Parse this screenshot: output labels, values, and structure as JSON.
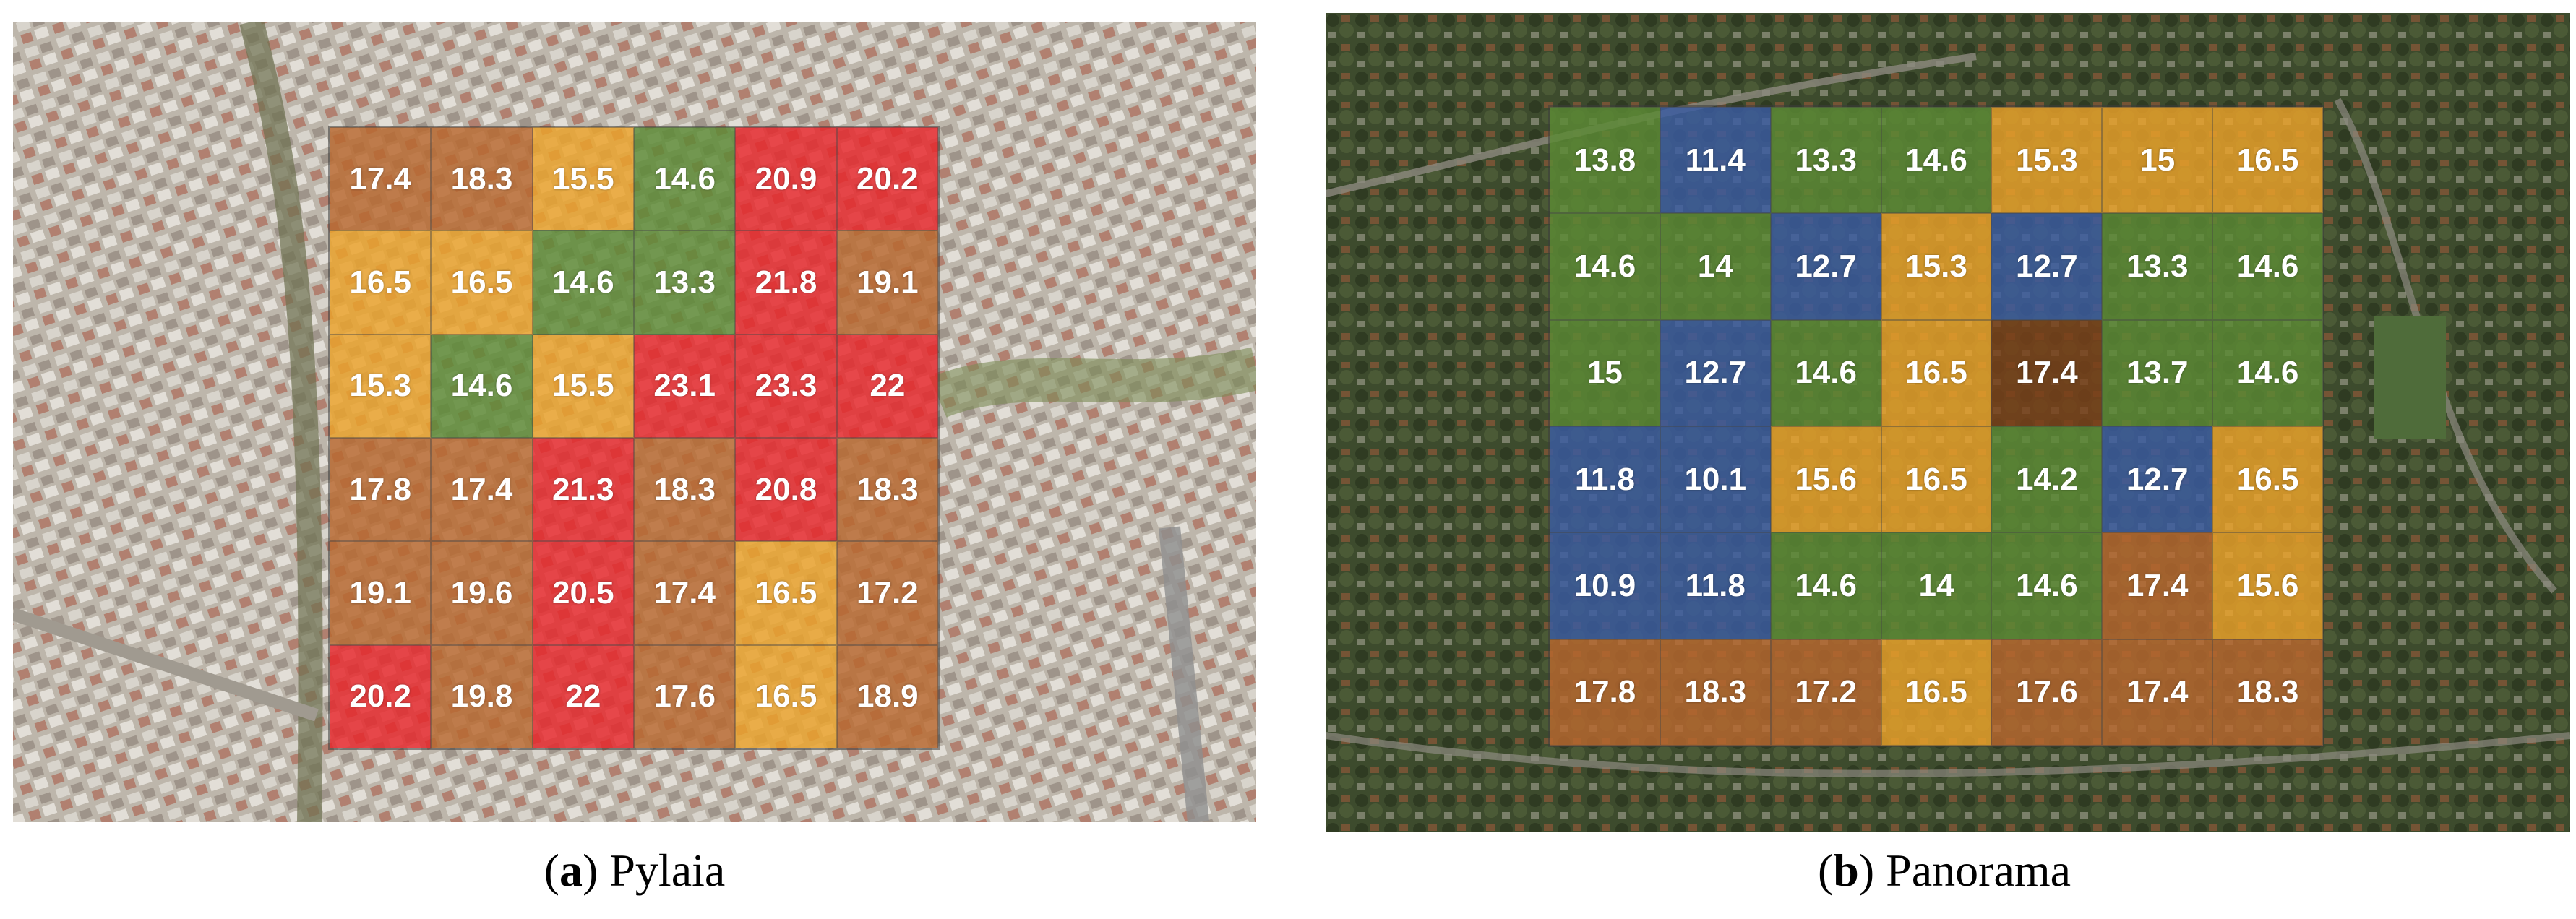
{
  "colors": {
    "red": "#e8262b",
    "brown": "#b8682e",
    "orange": "#eba22a",
    "green": "#5c8a34",
    "blue": "#3a5ca2",
    "darkbrown": "#7a3f19"
  },
  "panels": [
    {
      "id": "a",
      "caption_letter": "a",
      "caption_name": "Pylaia",
      "rows": [
        [
          {
            "v": "17.4",
            "c": "brown"
          },
          {
            "v": "18.3",
            "c": "brown"
          },
          {
            "v": "15.5",
            "c": "orange"
          },
          {
            "v": "14.6",
            "c": "green"
          },
          {
            "v": "20.9",
            "c": "red"
          },
          {
            "v": "20.2",
            "c": "red"
          }
        ],
        [
          {
            "v": "16.5",
            "c": "orange"
          },
          {
            "v": "16.5",
            "c": "orange"
          },
          {
            "v": "14.6",
            "c": "green"
          },
          {
            "v": "13.3",
            "c": "green"
          },
          {
            "v": "21.8",
            "c": "red"
          },
          {
            "v": "19.1",
            "c": "brown"
          }
        ],
        [
          {
            "v": "15.3",
            "c": "orange"
          },
          {
            "v": "14.6",
            "c": "green"
          },
          {
            "v": "15.5",
            "c": "orange"
          },
          {
            "v": "23.1",
            "c": "red"
          },
          {
            "v": "23.3",
            "c": "red"
          },
          {
            "v": "22",
            "c": "red"
          }
        ],
        [
          {
            "v": "17.8",
            "c": "brown"
          },
          {
            "v": "17.4",
            "c": "brown"
          },
          {
            "v": "21.3",
            "c": "red"
          },
          {
            "v": "18.3",
            "c": "brown"
          },
          {
            "v": "20.8",
            "c": "red"
          },
          {
            "v": "18.3",
            "c": "brown"
          }
        ],
        [
          {
            "v": "19.1",
            "c": "brown"
          },
          {
            "v": "19.6",
            "c": "brown"
          },
          {
            "v": "20.5",
            "c": "red"
          },
          {
            "v": "17.4",
            "c": "brown"
          },
          {
            "v": "16.5",
            "c": "orange"
          },
          {
            "v": "17.2",
            "c": "brown"
          }
        ],
        [
          {
            "v": "20.2",
            "c": "red"
          },
          {
            "v": "19.8",
            "c": "brown"
          },
          {
            "v": "22",
            "c": "red"
          },
          {
            "v": "17.6",
            "c": "brown"
          },
          {
            "v": "16.5",
            "c": "orange"
          },
          {
            "v": "18.9",
            "c": "brown"
          }
        ]
      ]
    },
    {
      "id": "b",
      "caption_letter": "b",
      "caption_name": "Panorama",
      "rows": [
        [
          {
            "v": "13.8",
            "c": "green"
          },
          {
            "v": "11.4",
            "c": "blue"
          },
          {
            "v": "13.3",
            "c": "green"
          },
          {
            "v": "14.6",
            "c": "green"
          },
          {
            "v": "15.3",
            "c": "orange"
          },
          {
            "v": "15",
            "c": "orange"
          },
          {
            "v": "16.5",
            "c": "orange"
          }
        ],
        [
          {
            "v": "14.6",
            "c": "green"
          },
          {
            "v": "14",
            "c": "green"
          },
          {
            "v": "12.7",
            "c": "blue"
          },
          {
            "v": "15.3",
            "c": "orange"
          },
          {
            "v": "12.7",
            "c": "blue"
          },
          {
            "v": "13.3",
            "c": "green"
          },
          {
            "v": "14.6",
            "c": "green"
          }
        ],
        [
          {
            "v": "15",
            "c": "green"
          },
          {
            "v": "12.7",
            "c": "blue"
          },
          {
            "v": "14.6",
            "c": "green"
          },
          {
            "v": "16.5",
            "c": "orange"
          },
          {
            "v": "17.4",
            "c": "darkbrown"
          },
          {
            "v": "13.7",
            "c": "green"
          },
          {
            "v": "14.6",
            "c": "green"
          }
        ],
        [
          {
            "v": "11.8",
            "c": "blue"
          },
          {
            "v": "10.1",
            "c": "blue"
          },
          {
            "v": "15.6",
            "c": "orange"
          },
          {
            "v": "16.5",
            "c": "orange"
          },
          {
            "v": "14.2",
            "c": "green"
          },
          {
            "v": "12.7",
            "c": "blue"
          },
          {
            "v": "16.5",
            "c": "orange"
          }
        ],
        [
          {
            "v": "10.9",
            "c": "blue"
          },
          {
            "v": "11.8",
            "c": "blue"
          },
          {
            "v": "14.6",
            "c": "green"
          },
          {
            "v": "14",
            "c": "green"
          },
          {
            "v": "14.6",
            "c": "green"
          },
          {
            "v": "17.4",
            "c": "brown"
          },
          {
            "v": "15.6",
            "c": "orange"
          }
        ],
        [
          {
            "v": "17.8",
            "c": "brown"
          },
          {
            "v": "18.3",
            "c": "brown"
          },
          {
            "v": "17.2",
            "c": "brown"
          },
          {
            "v": "16.5",
            "c": "orange"
          },
          {
            "v": "17.6",
            "c": "brown"
          },
          {
            "v": "17.4",
            "c": "brown"
          },
          {
            "v": "18.3",
            "c": "brown"
          }
        ]
      ]
    }
  ]
}
